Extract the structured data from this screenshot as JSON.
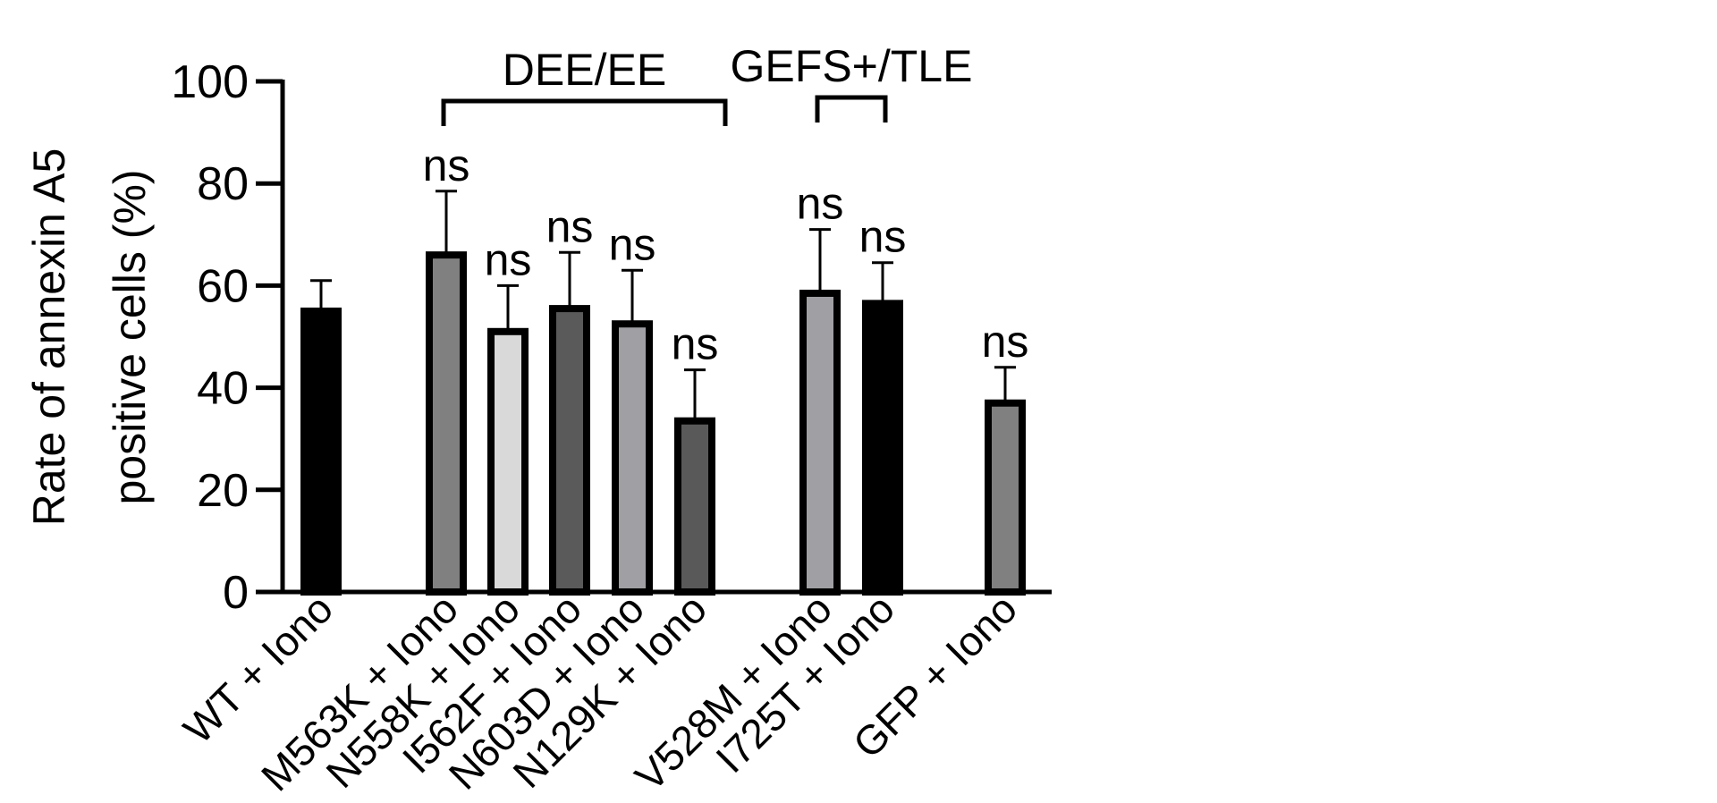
{
  "chart_data": {
    "type": "bar",
    "title": "",
    "ylabel_lines": [
      "Rate of annexin A5",
      "positive cells (%)"
    ],
    "xlabel": "",
    "ylim": [
      0,
      100
    ],
    "yticks": [
      0,
      20,
      40,
      60,
      80,
      100
    ],
    "categories": [
      "WT + Iono",
      "M563K + Iono",
      "N558K + Iono",
      "I562F + Iono",
      "N603D + Iono",
      "N129K + Iono",
      "V528M + Iono",
      "I725T + Iono",
      "GFP + Iono"
    ],
    "values": [
      55,
      66,
      51,
      55.5,
      52.5,
      33.5,
      58.5,
      56.5,
      37
    ],
    "errors": [
      6,
      12.5,
      9,
      11,
      10.5,
      10,
      12.5,
      8,
      7
    ],
    "fill_colors": [
      "#000000",
      "#808080",
      "#d9d9d9",
      "#5a5a5a",
      "#a0a0a4",
      "#595959",
      "#a0a0a4",
      "#000000",
      "#808080"
    ],
    "annotations": [
      "",
      "ns",
      "ns",
      "ns",
      "ns",
      "ns",
      "ns",
      "ns",
      "ns"
    ],
    "groups": [
      {
        "label": "DEE/EE",
        "from": 1,
        "to": 5
      },
      {
        "label": "GEFS+/TLE",
        "from": 6,
        "to": 7
      }
    ],
    "grid": false,
    "legend": "none"
  }
}
